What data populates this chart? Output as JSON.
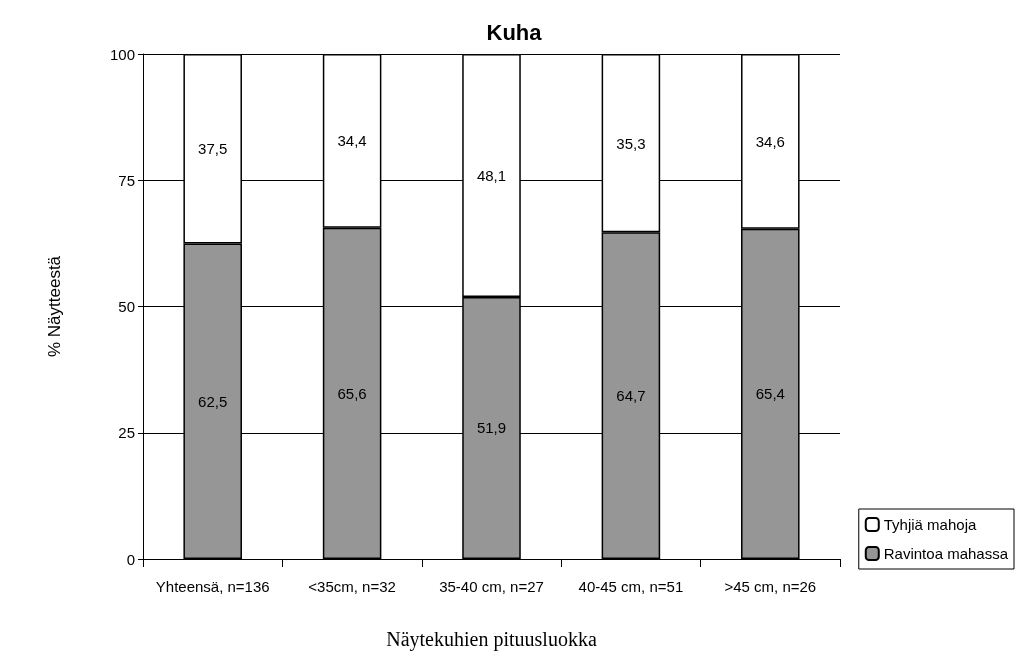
{
  "chart_data": {
    "type": "bar",
    "title": "Kuha",
    "xlabel": "Näytekuhien pituusluokka",
    "ylabel": "% Näytteestä",
    "categories": [
      "Yhteensä, n=136",
      "<35cm, n=32",
      "35-40 cm, n=27",
      "40-45 cm, n=51",
      ">45 cm, n=26"
    ],
    "series": [
      {
        "name": "Ravintoa mahassa",
        "color": "#969696",
        "values": [
          62.5,
          65.6,
          51.9,
          64.7,
          65.4
        ],
        "value_labels": [
          "62,5",
          "65,6",
          "51,9",
          "64,7",
          "65,4"
        ]
      },
      {
        "name": "Tyhjiä mahoja",
        "color": "#ffffff",
        "values": [
          37.5,
          34.4,
          48.1,
          35.3,
          34.6
        ],
        "value_labels": [
          "37,5",
          "34,4",
          "48,1",
          "35,3",
          "34,6"
        ]
      }
    ],
    "stacked": true,
    "ylim": [
      0,
      100
    ],
    "yticks": [
      0,
      25,
      50,
      75,
      100
    ],
    "grid": "y",
    "legend": "bottom right"
  }
}
